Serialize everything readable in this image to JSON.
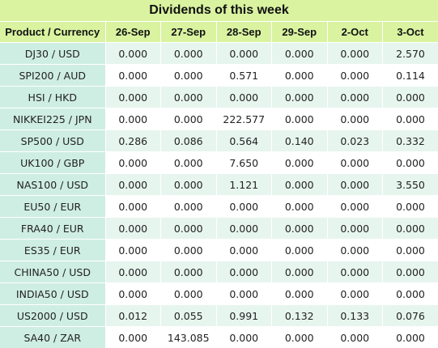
{
  "title": "Dividends of this week",
  "columns": [
    "Product / Currency",
    "26-Sep",
    "27-Sep",
    "28-Sep",
    "29-Sep",
    "2-Oct",
    "3-Oct"
  ],
  "rows": [
    {
      "product": "DJ30 / USD",
      "values": [
        "0.000",
        "0.000",
        "0.000",
        "0.000",
        "0.000",
        "2.570"
      ]
    },
    {
      "product": "SPI200 / AUD",
      "values": [
        "0.000",
        "0.000",
        "0.571",
        "0.000",
        "0.000",
        "0.114"
      ]
    },
    {
      "product": "HSI / HKD",
      "values": [
        "0.000",
        "0.000",
        "0.000",
        "0.000",
        "0.000",
        "0.000"
      ]
    },
    {
      "product": "NIKKEI225 / JPN",
      "values": [
        "0.000",
        "0.000",
        "222.577",
        "0.000",
        "0.000",
        "0.000"
      ]
    },
    {
      "product": "SP500 / USD",
      "values": [
        "0.286",
        "0.086",
        "0.564",
        "0.140",
        "0.023",
        "0.332"
      ]
    },
    {
      "product": "UK100 / GBP",
      "values": [
        "0.000",
        "0.000",
        "7.650",
        "0.000",
        "0.000",
        "0.000"
      ]
    },
    {
      "product": "NAS100 / USD",
      "values": [
        "0.000",
        "0.000",
        "1.121",
        "0.000",
        "0.000",
        "3.550"
      ]
    },
    {
      "product": "EU50 / EUR",
      "values": [
        "0.000",
        "0.000",
        "0.000",
        "0.000",
        "0.000",
        "0.000"
      ]
    },
    {
      "product": "FRA40 / EUR",
      "values": [
        "0.000",
        "0.000",
        "0.000",
        "0.000",
        "0.000",
        "0.000"
      ]
    },
    {
      "product": "ES35 / EUR",
      "values": [
        "0.000",
        "0.000",
        "0.000",
        "0.000",
        "0.000",
        "0.000"
      ]
    },
    {
      "product": "CHINA50 / USD",
      "values": [
        "0.000",
        "0.000",
        "0.000",
        "0.000",
        "0.000",
        "0.000"
      ]
    },
    {
      "product": "INDIA50 / USD",
      "values": [
        "0.000",
        "0.000",
        "0.000",
        "0.000",
        "0.000",
        "0.000"
      ]
    },
    {
      "product": "US2000 / USD",
      "values": [
        "0.012",
        "0.055",
        "0.991",
        "0.132",
        "0.133",
        "0.076"
      ]
    },
    {
      "product": "SA40 / ZAR",
      "values": [
        "0.000",
        "143.085",
        "0.000",
        "0.000",
        "0.000",
        "0.000"
      ]
    }
  ],
  "colors": {
    "header_bg": "#d9f3a0",
    "row_alt_bg": "#e7f5ef",
    "instrument_bg": "#cfeee3"
  }
}
